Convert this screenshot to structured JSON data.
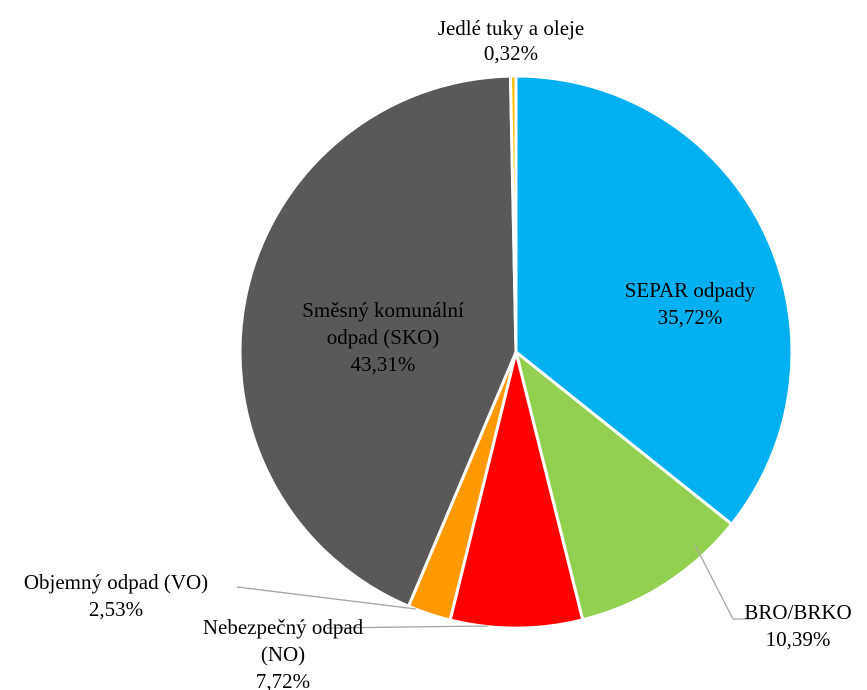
{
  "chart_data": {
    "type": "pie",
    "title": "",
    "start_angle_deg": 0,
    "direction": "clockwise",
    "slices": [
      {
        "name": "SEPAR odpady",
        "value": 35.72,
        "label": "35,72%",
        "color": "#00B0F0",
        "label_lines": [
          "SEPAR odpady"
        ],
        "label_placement": "inside"
      },
      {
        "name": "BRO/BRKO",
        "value": 10.39,
        "label": "10,39%",
        "color": "#92D050",
        "label_lines": [
          "BRO/BRKO"
        ],
        "label_placement": "outside"
      },
      {
        "name": "Nebezpečný odpad (NO)",
        "value": 7.72,
        "label": "7,72%",
        "color": "#FF0000",
        "label_lines": [
          "Nebezpečný odpad",
          "(NO)"
        ],
        "label_placement": "outside"
      },
      {
        "name": "Objemný odpad (VO)",
        "value": 2.53,
        "label": "2,53%",
        "color": "#FF9900",
        "label_lines": [
          "Objemný odpad (VO)"
        ],
        "label_placement": "outside"
      },
      {
        "name": "Směsný komunální odpad (SKO)",
        "value": 43.31,
        "label": "43,31%",
        "color": "#595959",
        "label_lines": [
          "Směsný komunální",
          "odpad (SKO)"
        ],
        "label_placement": "inside"
      },
      {
        "name": "Jedlé tuky a oleje",
        "value": 0.32,
        "label": "0,32%",
        "color": "#FFC000",
        "label_lines": [
          "Jedlé tuky a oleje"
        ],
        "label_placement": "outside"
      }
    ]
  }
}
